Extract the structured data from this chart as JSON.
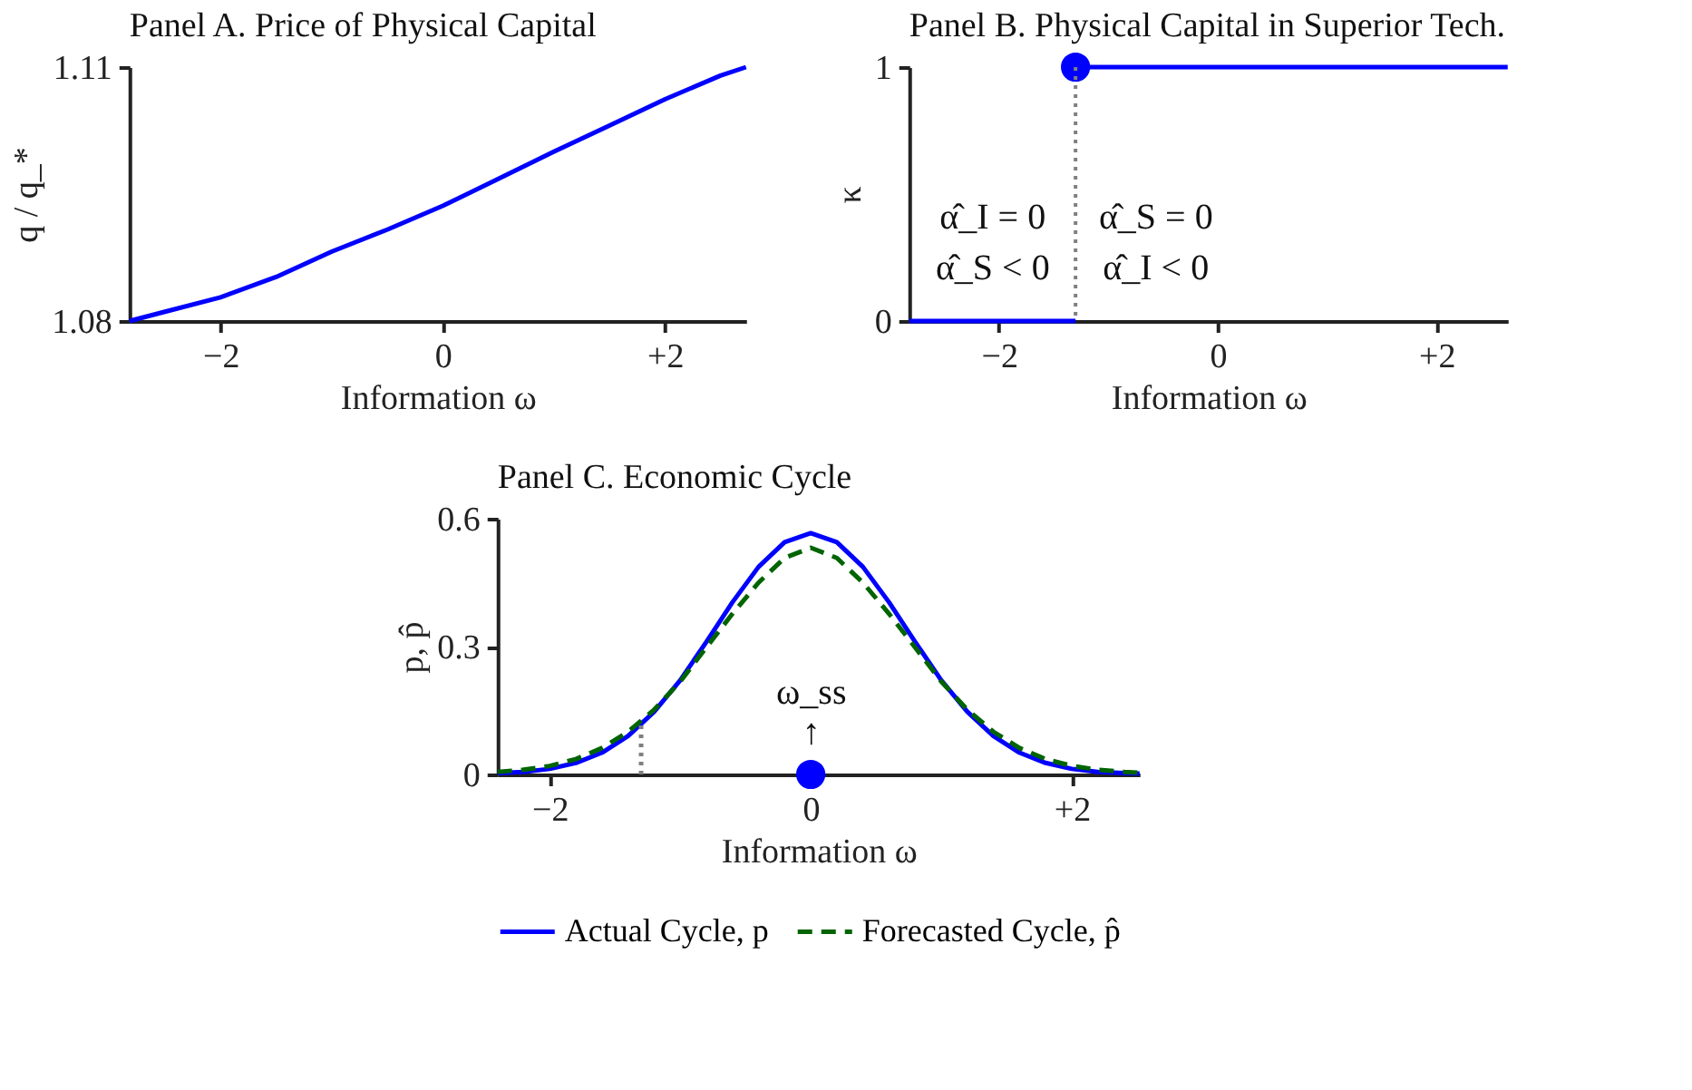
{
  "chart_data": [
    {
      "type": "line",
      "title": "Panel A. Price of Physical Capital",
      "xlabel": "Information ω",
      "ylabel": "q / q_*",
      "xlim": [
        -2.82,
        2.73
      ],
      "xticks": [
        {
          "value": -2,
          "label": "−2"
        },
        0,
        {
          "value": 2,
          "label": "+2"
        }
      ],
      "ylim": [
        1.08,
        1.11
      ],
      "yticks": [
        1.08,
        1.11
      ],
      "series": [
        {
          "color": "#0000ff",
          "x": [
            -2.82,
            -2.5,
            -2,
            -1.5,
            -1,
            -0.5,
            0,
            0.5,
            1,
            1.5,
            2,
            2.5,
            2.73
          ],
          "values": [
            1.08,
            1.0811,
            1.0828,
            1.0852,
            1.0882,
            1.0908,
            1.0936,
            1.0968,
            1.1,
            1.1031,
            1.1062,
            1.109,
            1.11
          ]
        }
      ]
    },
    {
      "type": "line",
      "title": "Panel B. Physical Capital in Superior Tech.",
      "xlabel": "Information ω",
      "ylabel": "κ",
      "xlim": [
        -2.82,
        2.65
      ],
      "xticks": [
        {
          "value": -2,
          "label": "−2"
        },
        0,
        {
          "value": 2,
          "label": "+2"
        }
      ],
      "ylim": [
        0,
        1
      ],
      "yticks": [
        0,
        1
      ],
      "series": [
        {
          "color": "#0000ff",
          "x": [
            -2.82,
            -1.3
          ],
          "values": [
            0,
            0
          ]
        },
        {
          "color": "#0000ff",
          "x": [
            -1.3,
            2.65
          ],
          "values": [
            1,
            1
          ]
        },
        {
          "type": "scatter",
          "marker": "circle",
          "color": "#0000ff",
          "x": [
            -1.3
          ],
          "values": [
            1
          ]
        }
      ],
      "ref_lines": [
        {
          "axis": "x",
          "value": -1.3,
          "color": "#808080",
          "line_style": "dotted"
        }
      ],
      "annotations": [
        "α̂_I = 0",
        "α̂_S < 0",
        "α̂_S = 0",
        "α̂_I < 0"
      ]
    },
    {
      "type": "line",
      "title": "Panel C. Economic Cycle",
      "xlabel": "Information ω",
      "ylabel": "p, p̂",
      "xlim": [
        -2.4,
        2.52
      ],
      "xticks": [
        {
          "value": -2,
          "label": "−2"
        },
        0,
        {
          "value": 2,
          "label": "+2"
        }
      ],
      "ylim": [
        0,
        0.6
      ],
      "yticks": [
        0,
        0.3,
        0.6
      ],
      "legend": "bottom",
      "series": [
        {
          "name": "Actual Cycle, p",
          "color": "#0000ff",
          "line_style": "solid",
          "x": [
            -2.4,
            -2.2,
            -2,
            -1.8,
            -1.6,
            -1.4,
            -1.2,
            -1,
            -0.8,
            -0.6,
            -0.4,
            -0.2,
            0,
            0.2,
            0.4,
            0.6,
            0.8,
            1,
            1.2,
            1.4,
            1.6,
            1.8,
            2,
            2.2,
            2.4,
            2.52
          ],
          "values": [
            0.003,
            0.006,
            0.013,
            0.027,
            0.051,
            0.09,
            0.147,
            0.221,
            0.311,
            0.404,
            0.487,
            0.545,
            0.566,
            0.545,
            0.487,
            0.404,
            0.311,
            0.221,
            0.147,
            0.09,
            0.051,
            0.027,
            0.013,
            0.006,
            0.003,
            0.002
          ]
        },
        {
          "name": "Forecasted Cycle, p̂",
          "color": "#006400",
          "line_style": "dashed",
          "x": [
            -2.4,
            -2.2,
            -2,
            -1.8,
            -1.6,
            -1.4,
            -1.2,
            -1,
            -0.8,
            -0.6,
            -0.4,
            -0.2,
            0,
            0.2,
            0.4,
            0.6,
            0.8,
            1,
            1.2,
            1.4,
            1.6,
            1.8,
            2,
            2.2,
            2.4,
            2.52
          ],
          "values": [
            0.006,
            0.011,
            0.02,
            0.036,
            0.062,
            0.1,
            0.152,
            0.218,
            0.298,
            0.377,
            0.45,
            0.508,
            0.532,
            0.508,
            0.45,
            0.377,
            0.298,
            0.218,
            0.152,
            0.1,
            0.062,
            0.036,
            0.02,
            0.011,
            0.006,
            0.004
          ]
        },
        {
          "color": "#808080",
          "line_style": "dotted",
          "x": [
            -1.3,
            -1.3
          ],
          "values": [
            0,
            0.118
          ]
        },
        {
          "type": "scatter",
          "marker": "circle",
          "color": "#0000ff",
          "x": [
            0
          ],
          "values": [
            0
          ]
        }
      ],
      "annotations": [
        "ω_ss",
        "↑"
      ]
    }
  ]
}
